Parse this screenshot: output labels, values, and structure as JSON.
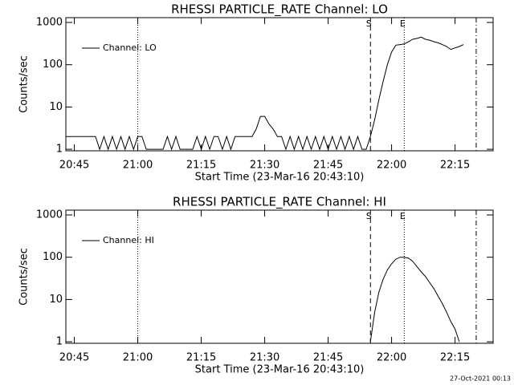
{
  "chart_data": [
    {
      "type": "line",
      "title": "RHESSI PARTICLE_RATE Channel: LO",
      "xlabel": "Start Time (23-Mar-16 20:43:10)",
      "ylabel": "Counts/sec",
      "log_y": true,
      "legend": "upper left",
      "x": [
        "20:43",
        "20:44",
        "20:45",
        "20:46",
        "20:47",
        "20:48",
        "20:49",
        "20:50",
        "20:51",
        "20:52",
        "20:53",
        "20:54",
        "20:55",
        "20:56",
        "20:57",
        "20:58",
        "20:59",
        "21:00",
        "21:01",
        "21:02",
        "21:03",
        "21:04",
        "21:05",
        "21:06",
        "21:07",
        "21:08",
        "21:09",
        "21:10",
        "21:11",
        "21:12",
        "21:13",
        "21:14",
        "21:15",
        "21:16",
        "21:17",
        "21:18",
        "21:19",
        "21:20",
        "21:21",
        "21:22",
        "21:23",
        "21:24",
        "21:25",
        "21:26",
        "21:27",
        "21:28",
        "21:29",
        "21:30",
        "21:31",
        "21:32",
        "21:33",
        "21:34",
        "21:35",
        "21:36",
        "21:37",
        "21:38",
        "21:39",
        "21:40",
        "21:41",
        "21:42",
        "21:43",
        "21:44",
        "21:45",
        "21:46",
        "21:47",
        "21:48",
        "21:49",
        "21:50",
        "21:51",
        "21:52",
        "21:53",
        "21:54",
        "21:55",
        "21:56",
        "21:57",
        "21:58",
        "21:59",
        "22:00",
        "22:01",
        "22:02",
        "22:03",
        "22:04",
        "22:05",
        "22:06",
        "22:07",
        "22:08",
        "22:09",
        "22:10",
        "22:11",
        "22:12",
        "22:13",
        "22:14",
        "22:15",
        "22:16",
        "22:17"
      ],
      "series": [
        {
          "name": "Channel: LO",
          "color": "#000000",
          "values": [
            2,
            2,
            2,
            2,
            2,
            2,
            2,
            2,
            1,
            2,
            1,
            2,
            1,
            2,
            1,
            2,
            1,
            2,
            2,
            1,
            1,
            1,
            1,
            1,
            2,
            1,
            2,
            1,
            1,
            1,
            1,
            2,
            1,
            2,
            1,
            2,
            2,
            1,
            2,
            1,
            2,
            2,
            2,
            2,
            2,
            3,
            6,
            6,
            4,
            3,
            2,
            2,
            1,
            2,
            1,
            2,
            1,
            2,
            1,
            2,
            1,
            2,
            1,
            2,
            1,
            2,
            1,
            2,
            1,
            2,
            1,
            1,
            2,
            5,
            15,
            40,
            100,
            200,
            290,
            300,
            310,
            350,
            400,
            420,
            450,
            400,
            380,
            350,
            330,
            300,
            270,
            230,
            250,
            270,
            300
          ]
        }
      ],
      "xlim": [
        "20:43",
        "22:24"
      ],
      "xticks": [
        "20:45",
        "21:00",
        "21:15",
        "21:30",
        "21:45",
        "22:00",
        "22:15"
      ],
      "ylim": [
        0.92,
        1300
      ],
      "yticks": [
        1,
        10,
        100,
        1000
      ],
      "vlines": [
        {
          "x": "21:00",
          "style": "dotted"
        },
        {
          "x": "21:55",
          "style": "dashed",
          "label": "S"
        },
        {
          "x": "22:03",
          "style": "dotted",
          "label": "E"
        },
        {
          "x": "22:20",
          "style": "dashdot"
        }
      ]
    },
    {
      "type": "line",
      "title": "RHESSI PARTICLE_RATE Channel: HI",
      "xlabel": "Start Time (23-Mar-16 20:43:10)",
      "ylabel": "Counts/sec",
      "log_y": true,
      "legend": "upper left",
      "x": [
        "21:55",
        "21:56",
        "21:57",
        "21:58",
        "21:59",
        "22:00",
        "22:01",
        "22:02",
        "22:03",
        "22:04",
        "22:05",
        "22:06",
        "22:07",
        "22:08",
        "22:09",
        "22:10",
        "22:11",
        "22:12",
        "22:13",
        "22:14",
        "22:15",
        "22:16"
      ],
      "series": [
        {
          "name": "Channel: HI",
          "color": "#000000",
          "values": [
            1,
            5,
            15,
            30,
            50,
            70,
            90,
            100,
            100,
            95,
            80,
            60,
            45,
            35,
            25,
            18,
            12,
            8,
            5,
            3,
            2,
            1
          ]
        }
      ],
      "xlim": [
        "20:43",
        "22:24"
      ],
      "xticks": [
        "20:45",
        "21:00",
        "21:15",
        "21:30",
        "21:45",
        "22:00",
        "22:15"
      ],
      "ylim": [
        0.92,
        1300
      ],
      "yticks": [
        1,
        10,
        100,
        1000
      ],
      "vlines": [
        {
          "x": "21:00",
          "style": "dotted"
        },
        {
          "x": "21:55",
          "style": "dashed",
          "label": "S"
        },
        {
          "x": "22:03",
          "style": "dotted",
          "label": "E"
        },
        {
          "x": "22:20",
          "style": "dashdot"
        }
      ]
    }
  ],
  "footer": "27-Oct-2021 00:13"
}
